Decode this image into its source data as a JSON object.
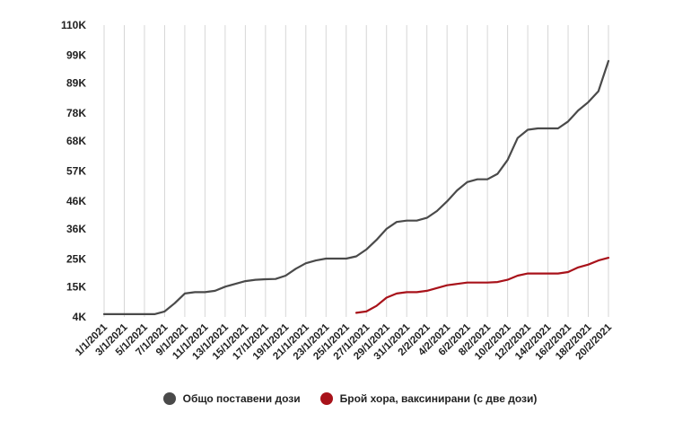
{
  "chart_data": {
    "type": "line",
    "x": [
      "1/1/2021",
      "2/1/2021",
      "3/1/2021",
      "4/1/2021",
      "5/1/2021",
      "6/1/2021",
      "7/1/2021",
      "8/1/2021",
      "9/1/2021",
      "10/1/2021",
      "11/1/2021",
      "12/1/2021",
      "13/1/2021",
      "14/1/2021",
      "15/1/2021",
      "16/1/2021",
      "17/1/2021",
      "18/1/2021",
      "19/1/2021",
      "20/1/2021",
      "21/1/2021",
      "22/1/2021",
      "23/1/2021",
      "24/1/2021",
      "25/1/2021",
      "26/1/2021",
      "27/1/2021",
      "28/1/2021",
      "29/1/2021",
      "30/1/2021",
      "31/1/2021",
      "1/2/2021",
      "2/2/2021",
      "3/2/2021",
      "4/2/2021",
      "5/2/2021",
      "6/2/2021",
      "7/2/2021",
      "8/2/2021",
      "9/2/2021",
      "10/2/2021",
      "11/2/2021",
      "12/2/2021",
      "13/2/2021",
      "14/2/2021",
      "15/2/2021",
      "16/2/2021",
      "17/2/2021",
      "18/2/2021",
      "19/2/2021",
      "20/2/2021"
    ],
    "x_tick_labels": [
      "1/1/2021",
      "3/1/2021",
      "5/1/2021",
      "7/1/2021",
      "9/1/2021",
      "11/1/2021",
      "13/1/2021",
      "15/1/2021",
      "17/1/2021",
      "19/1/2021",
      "21/1/2021",
      "23/1/2021",
      "25/1/2021",
      "27/1/2021",
      "29/1/2021",
      "31/1/2021",
      "2/2/2021",
      "4/2/2021",
      "6/2/2021",
      "8/2/2021",
      "10/2/2021",
      "12/2/2021",
      "14/2/2021",
      "16/2/2021",
      "18/2/2021",
      "20/2/2021"
    ],
    "y_ticks": [
      4000,
      15000,
      25000,
      36000,
      46000,
      57000,
      68000,
      78000,
      89000,
      99000,
      110000
    ],
    "y_tick_labels": [
      "4K",
      "15K",
      "25K",
      "36K",
      "46K",
      "57K",
      "68K",
      "78K",
      "89K",
      "99K",
      "110K"
    ],
    "ylim": [
      4000,
      110000
    ],
    "grid": "vertical",
    "legend_position": "bottom",
    "series": [
      {
        "name": "Общо поставени дози",
        "color": "#4a4a4a",
        "values": [
          5000,
          5000,
          5000,
          5000,
          5000,
          5000,
          6000,
          9000,
          12500,
          13000,
          13000,
          13500,
          15000,
          16000,
          17000,
          17500,
          17700,
          17800,
          19000,
          21500,
          23500,
          24500,
          25200,
          25200,
          25200,
          26000,
          28500,
          32000,
          36000,
          38500,
          39000,
          39000,
          40000,
          42500,
          46000,
          50000,
          53000,
          54000,
          54000,
          56000,
          61000,
          69000,
          72000,
          72500,
          72500,
          72500,
          75000,
          79000,
          82000,
          86000,
          97000
        ]
      },
      {
        "name": "Брой хора, ваксинирани (с две дози)",
        "color": "#a8121a",
        "values": [
          null,
          null,
          null,
          null,
          null,
          null,
          null,
          null,
          null,
          null,
          null,
          null,
          null,
          null,
          null,
          null,
          null,
          null,
          null,
          null,
          null,
          null,
          null,
          null,
          null,
          5500,
          6000,
          8000,
          11000,
          12500,
          13000,
          13000,
          13500,
          14500,
          15500,
          16000,
          16500,
          16500,
          16500,
          16700,
          17500,
          19000,
          19800,
          19800,
          19800,
          19800,
          20300,
          22000,
          23000,
          24500,
          25500
        ]
      }
    ]
  }
}
